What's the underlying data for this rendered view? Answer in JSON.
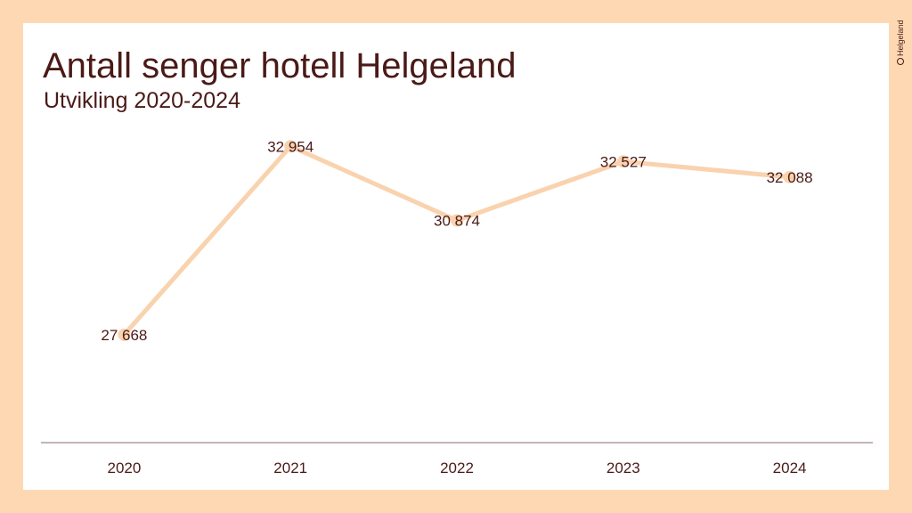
{
  "header": {
    "title": "Antall senger hotell Helgeland",
    "subtitle": "Utvikling 2020-2024"
  },
  "logo": {
    "text": "Helgeland"
  },
  "colors": {
    "background": "#FDD8B3",
    "panel": "#FFFFFF",
    "line": "#F9D2AE",
    "text": "#4A1A17",
    "axis": "#8A6E6B"
  },
  "chart_data": {
    "type": "line",
    "categories": [
      "2020",
      "2021",
      "2022",
      "2023",
      "2024"
    ],
    "series": [
      {
        "values": [
          27668,
          32954,
          30874,
          32527,
          32088
        ],
        "labels": [
          "27 668",
          "32 954",
          "30 874",
          "32 527",
          "32 088"
        ]
      }
    ],
    "ylim": [
      24640,
      33810
    ],
    "grid": false,
    "legend": "none"
  }
}
